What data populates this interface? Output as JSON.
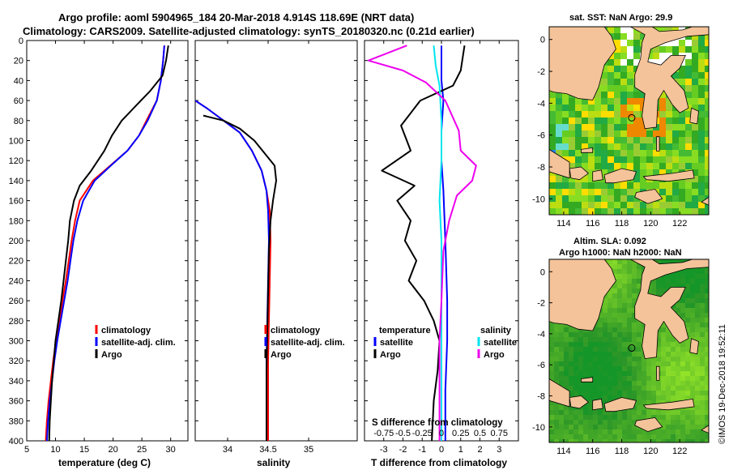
{
  "title_line1": "Argo profile: aoml 5904965_184 20-Mar-2018 4.914S 118.69E (NRT data)",
  "title_line2": "Climatology: CARS2009. Satellite-adjusted climatology: synTS_20180320.nc (0.21d earlier)",
  "side_stamp": "©IMOS 19-Dec-2018 19:52:11",
  "colors": {
    "climatology": "#ff0000",
    "satellite": "#0000ff",
    "argo": "#000000",
    "s_satellite": "#00e5ee",
    "s_argo": "#ee00ee",
    "land": "#f4c39a"
  },
  "chart_data": [
    {
      "type": "line",
      "id": "temperature",
      "xlabel": "temperature (deg C)",
      "xlim": [
        5,
        33
      ],
      "xticks": [
        "5",
        "10",
        "15",
        "20",
        "25",
        "30"
      ],
      "ylim": [
        0,
        400
      ],
      "yticks": [
        "0",
        "20",
        "40",
        "60",
        "80",
        "100",
        "120",
        "140",
        "160",
        "180",
        "200",
        "220",
        "240",
        "260",
        "280",
        "300",
        "320",
        "340",
        "360",
        "380",
        "400"
      ],
      "legend": [
        "climatology",
        "satellite-adj. clim.",
        "Argo"
      ],
      "series": [
        {
          "name": "climatology",
          "color": "#ff0000",
          "points": [
            [
              28.9,
              5
            ],
            [
              28.7,
              20
            ],
            [
              28.3,
              40
            ],
            [
              27.6,
              60
            ],
            [
              25.8,
              80
            ],
            [
              24.5,
              95
            ],
            [
              22.5,
              110
            ],
            [
              19.5,
              125
            ],
            [
              16.5,
              140
            ],
            [
              14.2,
              160
            ],
            [
              13.4,
              180
            ],
            [
              12.8,
              200
            ],
            [
              12.3,
              220
            ],
            [
              11.8,
              240
            ],
            [
              11.2,
              260
            ],
            [
              10.7,
              280
            ],
            [
              10.1,
              300
            ],
            [
              9.6,
              320
            ],
            [
              9.2,
              340
            ],
            [
              8.8,
              360
            ],
            [
              8.5,
              380
            ],
            [
              8.3,
              400
            ]
          ]
        },
        {
          "name": "satellite-adj. clim.",
          "color": "#0000ff",
          "points": [
            [
              28.9,
              5
            ],
            [
              28.7,
              20
            ],
            [
              28.3,
              40
            ],
            [
              27.6,
              60
            ],
            [
              26.0,
              80
            ],
            [
              24.5,
              95
            ],
            [
              22.5,
              110
            ],
            [
              19.6,
              125
            ],
            [
              16.8,
              140
            ],
            [
              14.8,
              160
            ],
            [
              13.8,
              180
            ],
            [
              13.1,
              200
            ],
            [
              12.6,
              220
            ],
            [
              12.1,
              240
            ],
            [
              11.5,
              260
            ],
            [
              10.9,
              280
            ],
            [
              10.3,
              300
            ],
            [
              9.8,
              320
            ],
            [
              9.4,
              340
            ],
            [
              9.0,
              360
            ],
            [
              8.7,
              380
            ],
            [
              8.5,
              400
            ]
          ]
        },
        {
          "name": "Argo",
          "color": "#000000",
          "points": [
            [
              29.6,
              5
            ],
            [
              29.2,
              20
            ],
            [
              28.6,
              35
            ],
            [
              26.5,
              50
            ],
            [
              24.0,
              65
            ],
            [
              21.5,
              80
            ],
            [
              19.8,
              95
            ],
            [
              18.5,
              110
            ],
            [
              16.2,
              130
            ],
            [
              14.2,
              145
            ],
            [
              13.2,
              160
            ],
            [
              12.5,
              180
            ],
            [
              12.2,
              200
            ],
            [
              11.8,
              220
            ],
            [
              11.4,
              240
            ],
            [
              11.0,
              260
            ],
            [
              10.5,
              280
            ],
            [
              10.0,
              300
            ],
            [
              9.7,
              320
            ],
            [
              9.4,
              340
            ],
            [
              9.2,
              360
            ],
            [
              9.0,
              380
            ],
            [
              8.9,
              400
            ]
          ]
        }
      ]
    },
    {
      "type": "line",
      "id": "salinity",
      "xlabel": "salinity",
      "xlim": [
        33.6,
        35.6
      ],
      "xticks": [
        "34",
        "34.5",
        "35"
      ],
      "ylim": [
        0,
        400
      ],
      "legend": [
        "climatology",
        "satellite-adj. clim.",
        "Argo"
      ],
      "series": [
        {
          "name": "climatology",
          "color": "#ff0000",
          "points": [
            [
              33.6,
              60
            ],
            [
              33.75,
              68
            ],
            [
              33.95,
              80
            ],
            [
              34.15,
              92
            ],
            [
              34.3,
              110
            ],
            [
              34.42,
              130
            ],
            [
              34.48,
              150
            ],
            [
              34.52,
              170
            ],
            [
              34.53,
              200
            ],
            [
              34.52,
              240
            ],
            [
              34.51,
              280
            ],
            [
              34.5,
              320
            ],
            [
              34.5,
              360
            ],
            [
              34.5,
              400
            ]
          ]
        },
        {
          "name": "satellite-adj. clim.",
          "color": "#0000ff",
          "points": [
            [
              33.6,
              60
            ],
            [
              33.75,
              68
            ],
            [
              33.95,
              80
            ],
            [
              34.15,
              92
            ],
            [
              34.3,
              110
            ],
            [
              34.42,
              130
            ],
            [
              34.48,
              150
            ],
            [
              34.5,
              170
            ],
            [
              34.51,
              200
            ],
            [
              34.5,
              240
            ],
            [
              34.49,
              280
            ],
            [
              34.48,
              320
            ],
            [
              34.48,
              360
            ],
            [
              34.48,
              400
            ]
          ]
        },
        {
          "name": "Argo",
          "color": "#000000",
          "points": [
            [
              33.7,
              75
            ],
            [
              33.95,
              80
            ],
            [
              34.15,
              88
            ],
            [
              34.33,
              100
            ],
            [
              34.48,
              115
            ],
            [
              34.58,
              125
            ],
            [
              34.6,
              140
            ],
            [
              34.56,
              160
            ],
            [
              34.53,
              180
            ],
            [
              34.51,
              210
            ],
            [
              34.5,
              250
            ],
            [
              34.49,
              290
            ],
            [
              34.48,
              330
            ],
            [
              34.48,
              370
            ],
            [
              34.48,
              400
            ]
          ]
        }
      ]
    },
    {
      "type": "line",
      "id": "difference",
      "xlabel": "T difference from climatology",
      "xlim": [
        -4,
        4
      ],
      "xticks": [
        "-3",
        "-2",
        "-1",
        "0",
        "1",
        "2",
        "3"
      ],
      "top_label": "S difference from climatology",
      "top_ticks": [
        "-0.75",
        "-0.5",
        "-0.25",
        "0",
        "0.25",
        "0.5",
        "0.75"
      ],
      "ylim": [
        0,
        400
      ],
      "legend_temperature": [
        "temperature",
        "satellite",
        "Argo"
      ],
      "legend_salinity": [
        "salinity",
        "satellite",
        "Argo"
      ],
      "series": [
        {
          "name": "T satellite",
          "color": "#0000ff",
          "points": [
            [
              0,
              5
            ],
            [
              0,
              40
            ],
            [
              0.1,
              60
            ],
            [
              0.0,
              90
            ],
            [
              0.0,
              120
            ],
            [
              0.1,
              150
            ],
            [
              0.2,
              200
            ],
            [
              0.3,
              260
            ],
            [
              0.3,
              300
            ],
            [
              0.2,
              350
            ],
            [
              0.2,
              400
            ]
          ]
        },
        {
          "name": "T Argo",
          "color": "#000000",
          "points": [
            [
              1.2,
              5
            ],
            [
              1.0,
              30
            ],
            [
              0.6,
              45
            ],
            [
              -1.1,
              60
            ],
            [
              -2.1,
              85
            ],
            [
              -1.6,
              110
            ],
            [
              -3.1,
              130
            ],
            [
              -1.4,
              145
            ],
            [
              -2.3,
              160
            ],
            [
              -1.6,
              180
            ],
            [
              -1.9,
              200
            ],
            [
              -1.3,
              220
            ],
            [
              -1.7,
              240
            ],
            [
              -0.9,
              260
            ],
            [
              -0.4,
              280
            ],
            [
              -0.1,
              300
            ],
            [
              -0.2,
              330
            ],
            [
              -0.4,
              360
            ],
            [
              -0.5,
              400
            ]
          ]
        },
        {
          "name": "S satellite",
          "color": "#00e5ee",
          "points": [
            [
              -0.4,
              5
            ],
            [
              -0.3,
              25
            ],
            [
              -0.1,
              45
            ],
            [
              0.0,
              80
            ],
            [
              0.0,
              120
            ],
            [
              -0.1,
              160
            ],
            [
              0.0,
              200
            ],
            [
              0.0,
              260
            ],
            [
              0.0,
              300
            ],
            [
              0.0,
              340
            ],
            [
              0.0,
              400
            ]
          ]
        },
        {
          "name": "S Argo",
          "color": "#ee00ee",
          "points": [
            [
              -1.8,
              5
            ],
            [
              -3.8,
              20
            ],
            [
              -2.0,
              30
            ],
            [
              -0.8,
              42
            ],
            [
              0.2,
              60
            ],
            [
              0.9,
              90
            ],
            [
              1.0,
              110
            ],
            [
              1.8,
              125
            ],
            [
              1.6,
              140
            ],
            [
              0.8,
              155
            ],
            [
              0.4,
              180
            ],
            [
              0.1,
              210
            ],
            [
              0.0,
              260
            ],
            [
              -0.1,
              300
            ],
            [
              -0.1,
              400
            ]
          ]
        }
      ]
    },
    {
      "type": "heatmap",
      "id": "sst_map",
      "title": "sat. SST: NaN Argo: 29.9",
      "xticks": [
        "114",
        "116",
        "118",
        "120",
        "122"
      ],
      "yticks": [
        "0",
        "-2",
        "-4",
        "-6",
        "-8",
        "-10"
      ],
      "xlim": [
        113,
        124
      ],
      "ylim": [
        -11,
        0.8
      ],
      "argo_position": [
        118.69,
        -4.914
      ]
    },
    {
      "type": "heatmap",
      "id": "sla_map",
      "title_line1": "Altim. SLA: 0.092",
      "title_line2": "Argo h1000: NaN h2000: NaN",
      "xticks": [
        "114",
        "116",
        "118",
        "120",
        "122"
      ],
      "yticks": [
        "0",
        "-2",
        "-4",
        "-6",
        "-8",
        "-10"
      ],
      "xlim": [
        113,
        124
      ],
      "ylim": [
        -11,
        0.8
      ],
      "argo_position": [
        118.69,
        -4.914
      ]
    }
  ]
}
